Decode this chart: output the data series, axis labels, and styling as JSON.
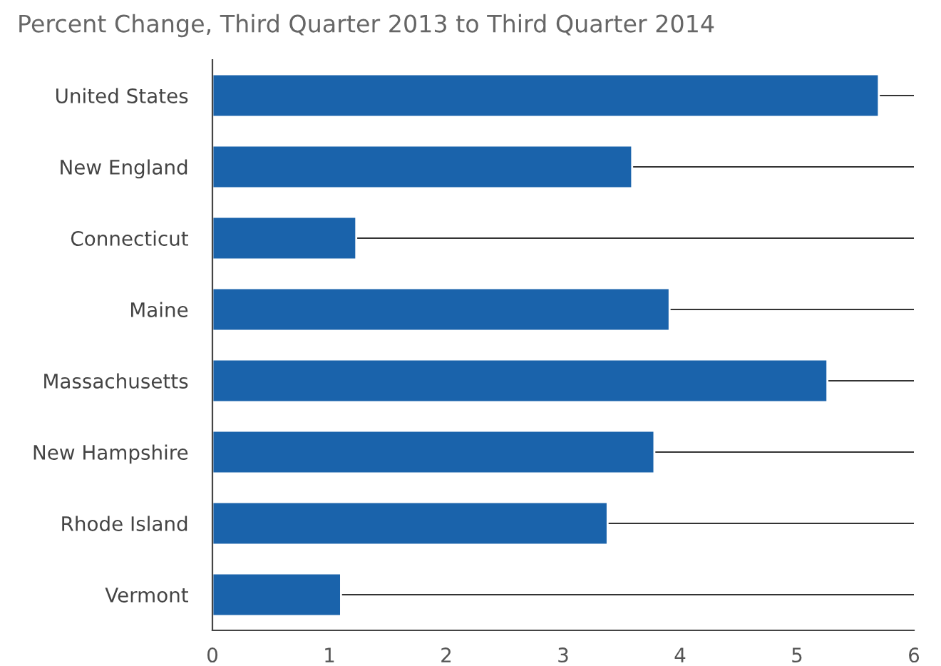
{
  "chart_data": {
    "type": "bar",
    "orientation": "horizontal",
    "title": "Percent Change, Third Quarter 2013 to Third Quarter 2014",
    "categories": [
      "United States",
      "New England",
      "Connecticut",
      "Maine",
      "Massachusetts",
      "New Hampshire",
      "Rhode Island",
      "Vermont"
    ],
    "values": [
      5.7,
      3.59,
      1.23,
      3.91,
      5.26,
      3.78,
      3.38,
      1.1
    ],
    "color": "#1a63ab",
    "xlim": [
      0,
      6
    ],
    "xticks": [
      0,
      1,
      2,
      3,
      4,
      5,
      6
    ],
    "grid": "y"
  }
}
